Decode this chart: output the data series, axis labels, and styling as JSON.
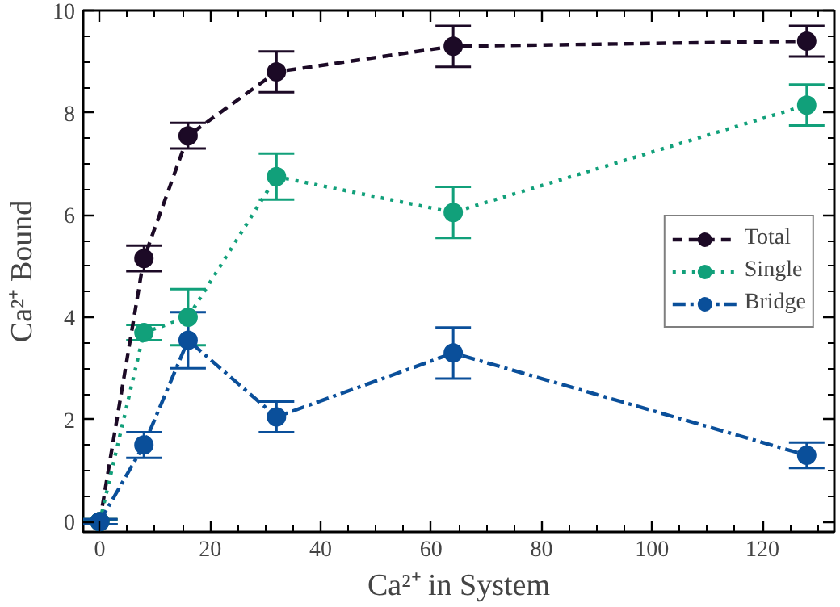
{
  "chart_data": {
    "type": "line",
    "xlabel": "Ca²⁺ in System",
    "ylabel": "Ca²⁺ Bound",
    "x": [
      0,
      8,
      16,
      32,
      64,
      128
    ],
    "series": [
      {
        "name": "Total",
        "color": "#1c0a26",
        "values": [
          0,
          5.15,
          7.55,
          8.8,
          9.3,
          9.4
        ],
        "errors": [
          0.05,
          0.25,
          0.25,
          0.4,
          0.4,
          0.3
        ],
        "line_style": "dashed"
      },
      {
        "name": "Single",
        "color": "#11a07a",
        "values": [
          0,
          3.7,
          4.0,
          6.75,
          6.05,
          8.15
        ],
        "errors": [
          0.05,
          0.15,
          0.55,
          0.45,
          0.5,
          0.4
        ],
        "line_style": "dotted"
      },
      {
        "name": "Bridge",
        "color": "#0a4f9a",
        "values": [
          0,
          1.5,
          3.55,
          2.05,
          3.3,
          1.3
        ],
        "errors": [
          0.05,
          0.25,
          0.55,
          0.3,
          0.5,
          0.25
        ],
        "line_style": "dashdot"
      }
    ],
    "xlim": [
      -3,
      133
    ],
    "ylim": [
      -0.2,
      10
    ],
    "xticks": [
      0,
      20,
      40,
      60,
      80,
      100,
      120
    ],
    "yticks": [
      0,
      2,
      4,
      6,
      8,
      10
    ],
    "marker": "circle",
    "legend": "right",
    "grid": false
  }
}
